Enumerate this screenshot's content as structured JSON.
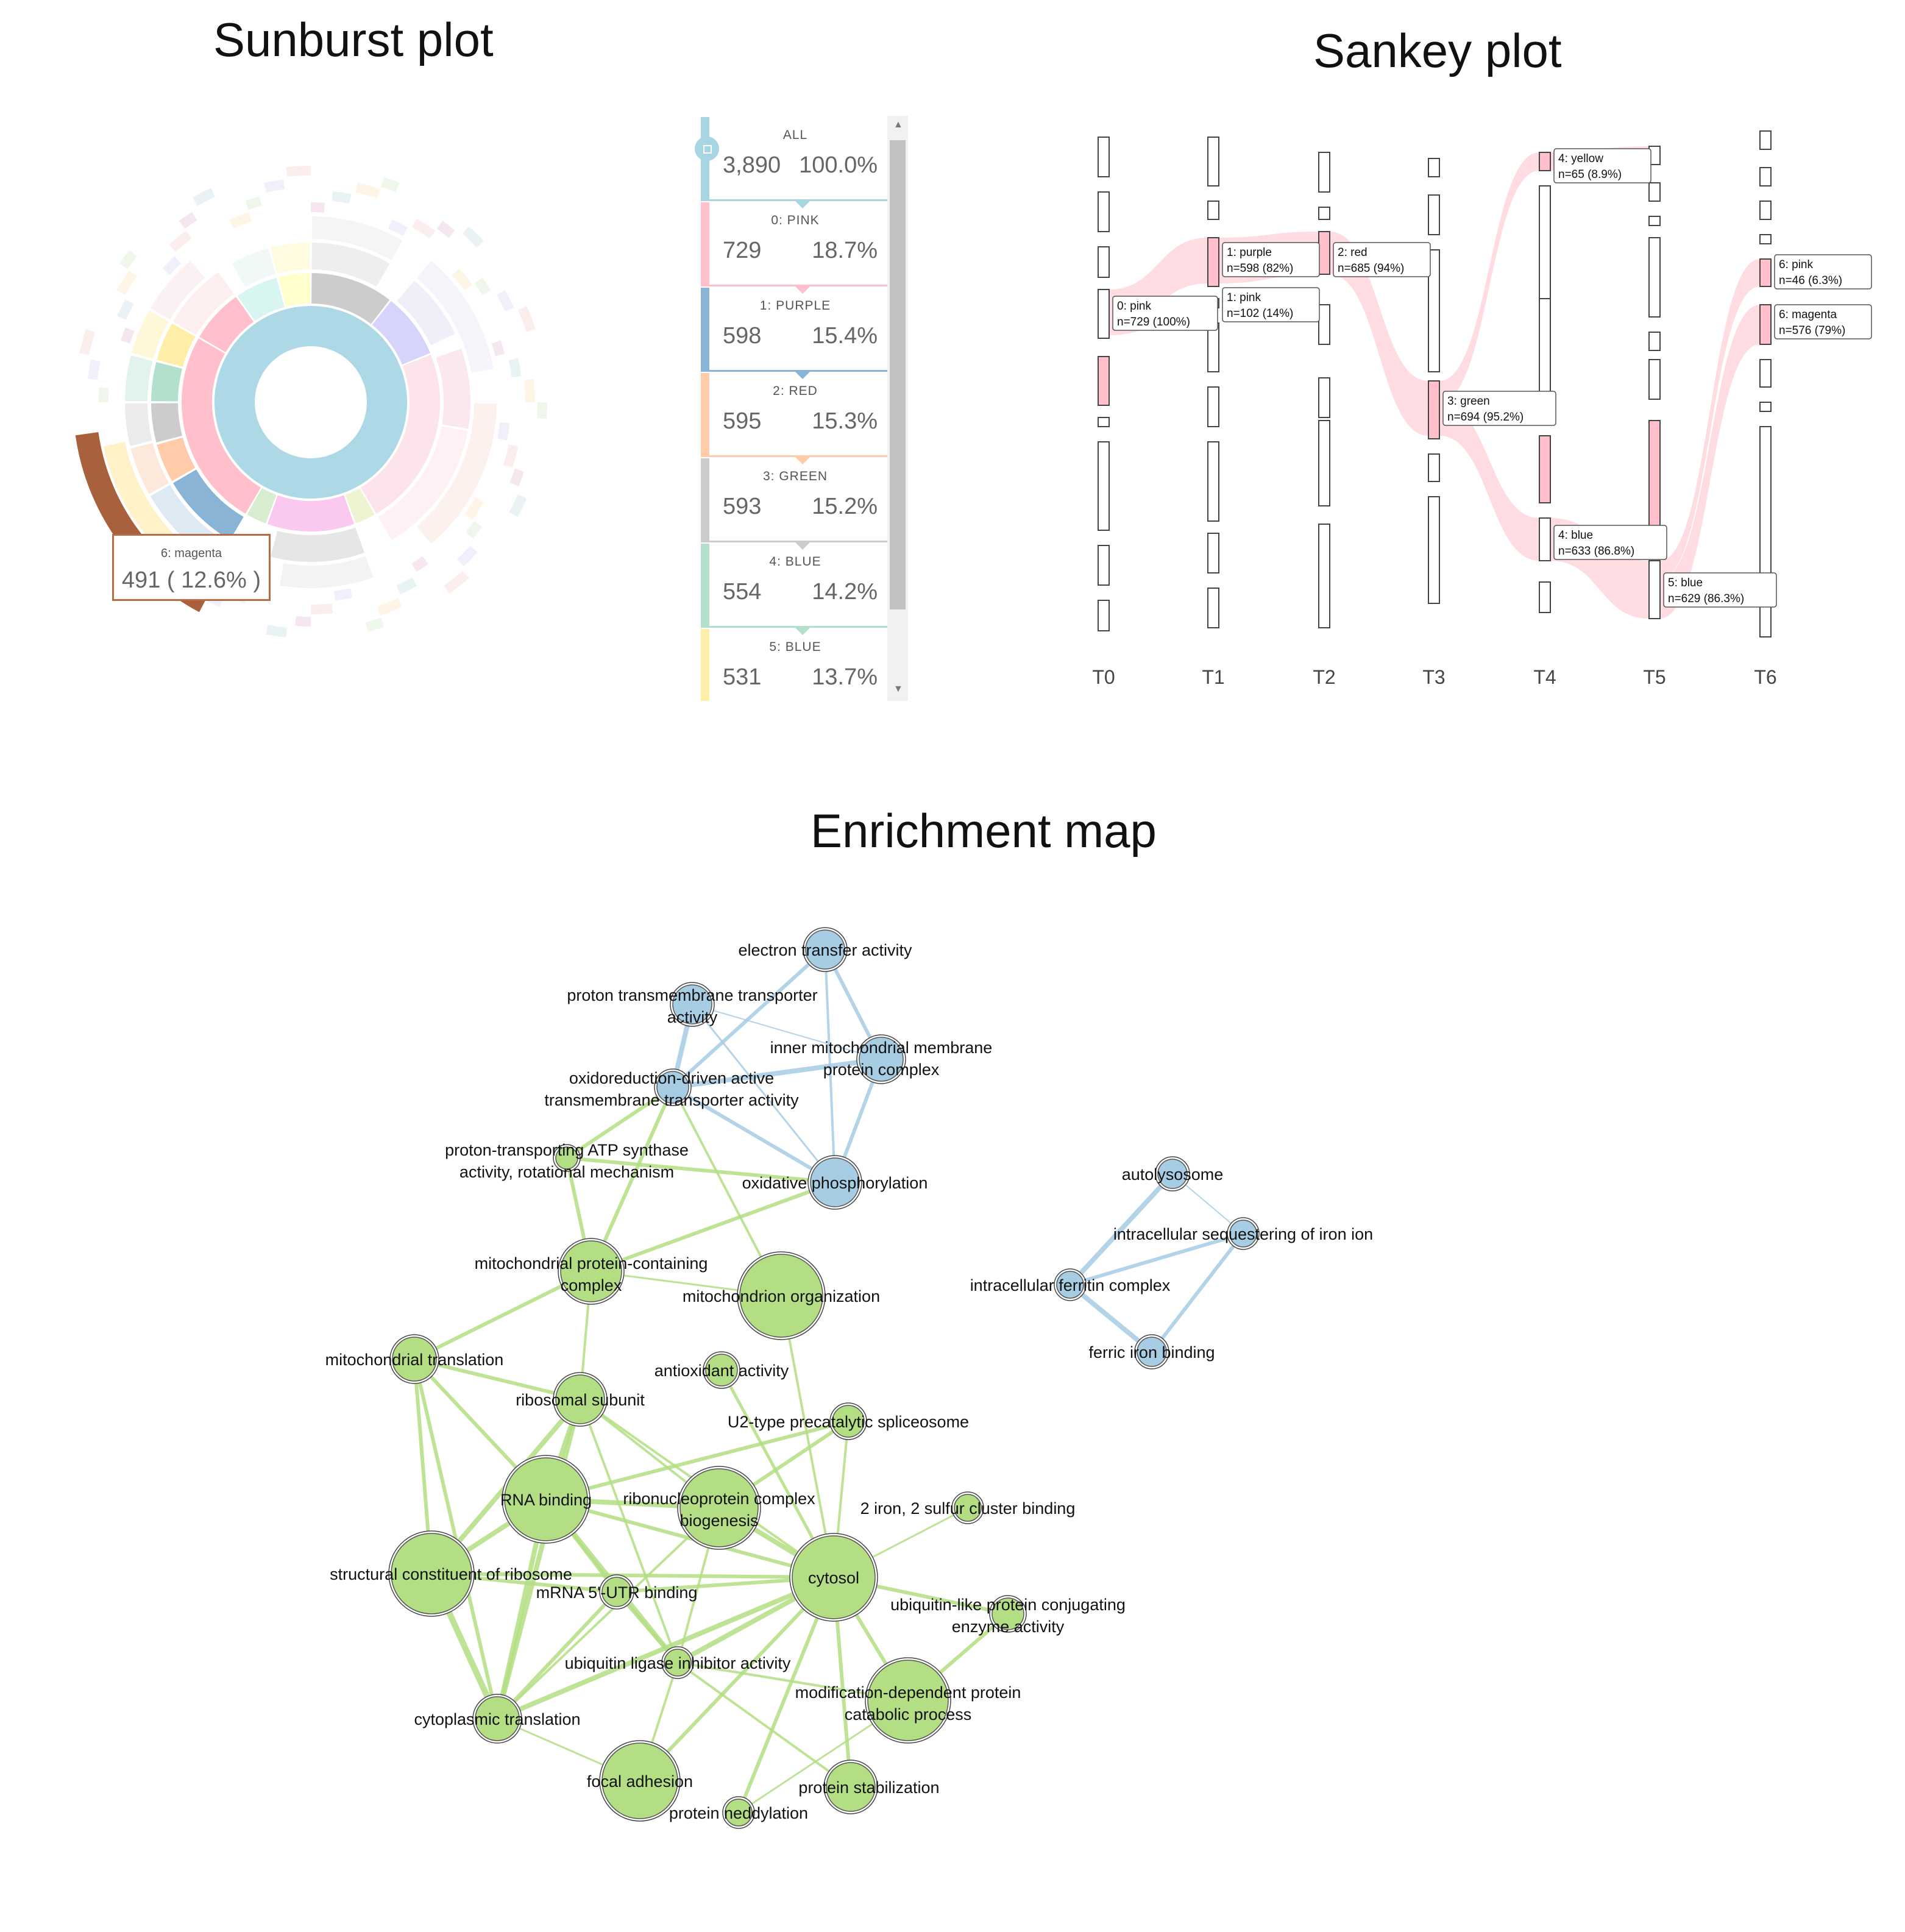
{
  "titles": {
    "sunburst": "Sunburst plot",
    "sankey": "Sankey plot",
    "enrichment": "Enrichment map"
  },
  "sunburst_panel": {
    "items": [
      {
        "label": "ALL",
        "count": "3,890",
        "pct": "100.0%",
        "color": "#a8d5e2"
      },
      {
        "label": "0: PINK",
        "count": "729",
        "pct": "18.7%",
        "color": "#ffc0cb"
      },
      {
        "label": "1: PURPLE",
        "count": "598",
        "pct": "15.4%",
        "color": "#8ab4d6"
      },
      {
        "label": "2: RED",
        "count": "595",
        "pct": "15.3%",
        "color": "#ffcba8"
      },
      {
        "label": "3: GREEN",
        "count": "593",
        "pct": "15.2%",
        "color": "#cccccc"
      },
      {
        "label": "4: BLUE",
        "count": "554",
        "pct": "14.2%",
        "color": "#b2e0cc"
      },
      {
        "label": "5: BLUE",
        "count": "531",
        "pct": "13.7%",
        "color": "#ffeea8"
      }
    ],
    "tooltip": {
      "label": "6: magenta",
      "value": "491 ( 12.6% )"
    }
  },
  "sankey": {
    "timepoints": [
      "T0",
      "T1",
      "T2",
      "T3",
      "T4",
      "T5",
      "T6"
    ],
    "labels": [
      {
        "title": "0: pink",
        "stat": "n=729 (100%)"
      },
      {
        "title": "1: purple",
        "stat": "n=598 (82%)"
      },
      {
        "title": "1: pink",
        "stat": "n=102 (14%)"
      },
      {
        "title": "2: red",
        "stat": "n=685 (94%)"
      },
      {
        "title": "3: green",
        "stat": "n=694 (95.2%)"
      },
      {
        "title": "4: yellow",
        "stat": "n=65 (8.9%)"
      },
      {
        "title": "4: blue",
        "stat": "n=633 (86.8%)"
      },
      {
        "title": "5: blue",
        "stat": "n=629 (86.3%)"
      },
      {
        "title": "6: pink",
        "stat": "n=46 (6.3%)"
      },
      {
        "title": "6: magenta",
        "stat": "n=576 (79%)"
      }
    ],
    "flow_color": "#ffc0cb"
  },
  "enrichment": {
    "colors": {
      "green": "#b3de83",
      "blue": "#a6cde4"
    },
    "nodes": [
      {
        "id": "etc",
        "label": [
          "electron transfer activity"
        ],
        "c": "blue"
      },
      {
        "id": "ptta",
        "label": [
          "proton transmembrane transporter",
          "activity"
        ],
        "c": "blue"
      },
      {
        "id": "imm",
        "label": [
          "inner mitochondrial membrane",
          "protein complex"
        ],
        "c": "blue"
      },
      {
        "id": "odt",
        "label": [
          "oxidoreduction-driven active",
          "transmembrane transporter activity"
        ],
        "c": "blue"
      },
      {
        "id": "atp",
        "label": [
          "proton-transporting ATP synthase",
          "activity, rotational mechanism"
        ],
        "c": "green"
      },
      {
        "id": "oxp",
        "label": [
          "oxidative phosphorylation"
        ],
        "c": "blue"
      },
      {
        "id": "mpc",
        "label": [
          "mitochondrial protein-containing",
          "complex"
        ],
        "c": "green"
      },
      {
        "id": "mor",
        "label": [
          "mitochondrion organization"
        ],
        "c": "green"
      },
      {
        "id": "mtr",
        "label": [
          "mitochondrial translation"
        ],
        "c": "green"
      },
      {
        "id": "aox",
        "label": [
          "antioxidant activity"
        ],
        "c": "green"
      },
      {
        "id": "rsu",
        "label": [
          "ribosomal subunit"
        ],
        "c": "green"
      },
      {
        "id": "u2",
        "label": [
          "U2-type precatalytic spliceosome"
        ],
        "c": "green"
      },
      {
        "id": "rnab",
        "label": [
          "RNA binding"
        ],
        "c": "green"
      },
      {
        "id": "rnp",
        "label": [
          "ribonucleoprotein complex",
          "biogenesis"
        ],
        "c": "green"
      },
      {
        "id": "fes",
        "label": [
          "2 iron, 2 sulfur cluster binding"
        ],
        "c": "green"
      },
      {
        "id": "scr",
        "label": [
          "structural constituent of ribosome"
        ],
        "c": "green"
      },
      {
        "id": "cyt",
        "label": [
          "cytosol"
        ],
        "c": "green"
      },
      {
        "id": "m5u",
        "label": [
          "mRNA 5'-UTR binding"
        ],
        "c": "green"
      },
      {
        "id": "ubl",
        "label": [
          "ubiquitin-like protein conjugating",
          "enzyme activity"
        ],
        "c": "green"
      },
      {
        "id": "uli",
        "label": [
          "ubiquitin ligase inhibitor activity"
        ],
        "c": "green"
      },
      {
        "id": "mdp",
        "label": [
          "modification-dependent protein",
          "catabolic process"
        ],
        "c": "green"
      },
      {
        "id": "ctr",
        "label": [
          "cytoplasmic translation"
        ],
        "c": "green"
      },
      {
        "id": "fad",
        "label": [
          "focal adhesion"
        ],
        "c": "green"
      },
      {
        "id": "pst",
        "label": [
          "protein stabilization"
        ],
        "c": "green"
      },
      {
        "id": "pnd",
        "label": [
          "protein neddylation"
        ],
        "c": "green"
      },
      {
        "id": "alys",
        "label": [
          "autolysosome"
        ],
        "c": "blue"
      },
      {
        "id": "isi",
        "label": [
          "intracellular sequestering of iron ion"
        ],
        "c": "blue"
      },
      {
        "id": "ifc",
        "label": [
          "intracellular ferritin complex"
        ],
        "c": "blue"
      },
      {
        "id": "fib",
        "label": [
          "ferric iron binding"
        ],
        "c": "blue"
      }
    ]
  }
}
